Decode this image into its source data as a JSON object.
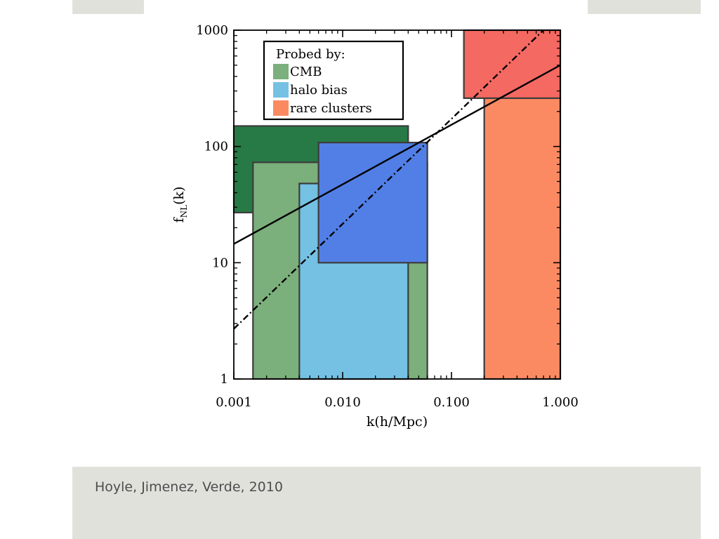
{
  "caption": "Hoyle, Jimenez, Verde, 2010",
  "chart_data": {
    "type": "boxes-on-loglog",
    "xlabel": "k(h/Mpc)",
    "ylabel_main": "f",
    "ylabel_sub": "NL",
    "ylabel_tail": "(k)",
    "xscale": "log",
    "yscale": "log",
    "xlim": [
      0.001,
      1.0
    ],
    "ylim": [
      1,
      1000
    ],
    "x_ticks": [
      {
        "value": 0.001,
        "label": "0.001"
      },
      {
        "value": 0.01,
        "label": "0.010"
      },
      {
        "value": 0.1,
        "label": "0.100"
      },
      {
        "value": 1.0,
        "label": "1.000"
      }
    ],
    "y_ticks": [
      {
        "value": 1,
        "label": "1"
      },
      {
        "value": 10,
        "label": "10"
      },
      {
        "value": 100,
        "label": "100"
      },
      {
        "value": 1000,
        "label": "1000"
      }
    ],
    "legend": {
      "title": "Probed by:",
      "placement": "top-left",
      "entries": [
        {
          "label": "CMB",
          "color": "#7baf7b"
        },
        {
          "label": "halo bias",
          "color": "#74c1e4"
        },
        {
          "label": "rare clusters",
          "color": "#fb8a62"
        }
      ]
    },
    "regions": [
      {
        "probe": "CMB",
        "x": [
          0.001,
          0.04
        ],
        "y": [
          27,
          150
        ],
        "color": "#277a45"
      },
      {
        "probe": "CMB",
        "x": [
          0.0015,
          0.06
        ],
        "y": [
          1,
          73
        ],
        "color": "#7baf7b"
      },
      {
        "probe": "halo bias",
        "x": [
          0.004,
          0.04
        ],
        "y": [
          1,
          48
        ],
        "color": "#74c1e4"
      },
      {
        "probe": "halo bias",
        "x": [
          0.006,
          0.06
        ],
        "y": [
          10,
          108
        ],
        "color": "#527fe6"
      },
      {
        "probe": "rare clusters",
        "x": [
          0.2,
          1.0
        ],
        "y": [
          1,
          260
        ],
        "color": "#fb8a62"
      },
      {
        "probe": "rare clusters",
        "x": [
          0.13,
          1.0
        ],
        "y": [
          260,
          1000
        ],
        "color": "#f46961"
      }
    ],
    "lines": [
      {
        "style": "solid",
        "points": [
          [
            0.001,
            14.5
          ],
          [
            1.0,
            500
          ]
        ]
      },
      {
        "style": "dashdot",
        "points": [
          [
            0.001,
            2.7
          ],
          [
            0.7,
            1000
          ]
        ]
      }
    ]
  }
}
